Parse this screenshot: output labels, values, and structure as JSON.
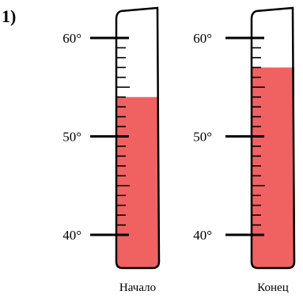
{
  "problem_number": "1)",
  "colors": {
    "liquid": "#f06262",
    "outline": "#000000",
    "background": "#ffffff"
  },
  "scale": {
    "unit": "°",
    "min": 40,
    "max": 60,
    "major_step": 10,
    "minor_step": 1,
    "major_labels": [
      "60°",
      "50°",
      "40°"
    ]
  },
  "thermometers": [
    {
      "caption": "Начало",
      "reading": 54
    },
    {
      "caption": "Конец",
      "reading": 57
    }
  ]
}
